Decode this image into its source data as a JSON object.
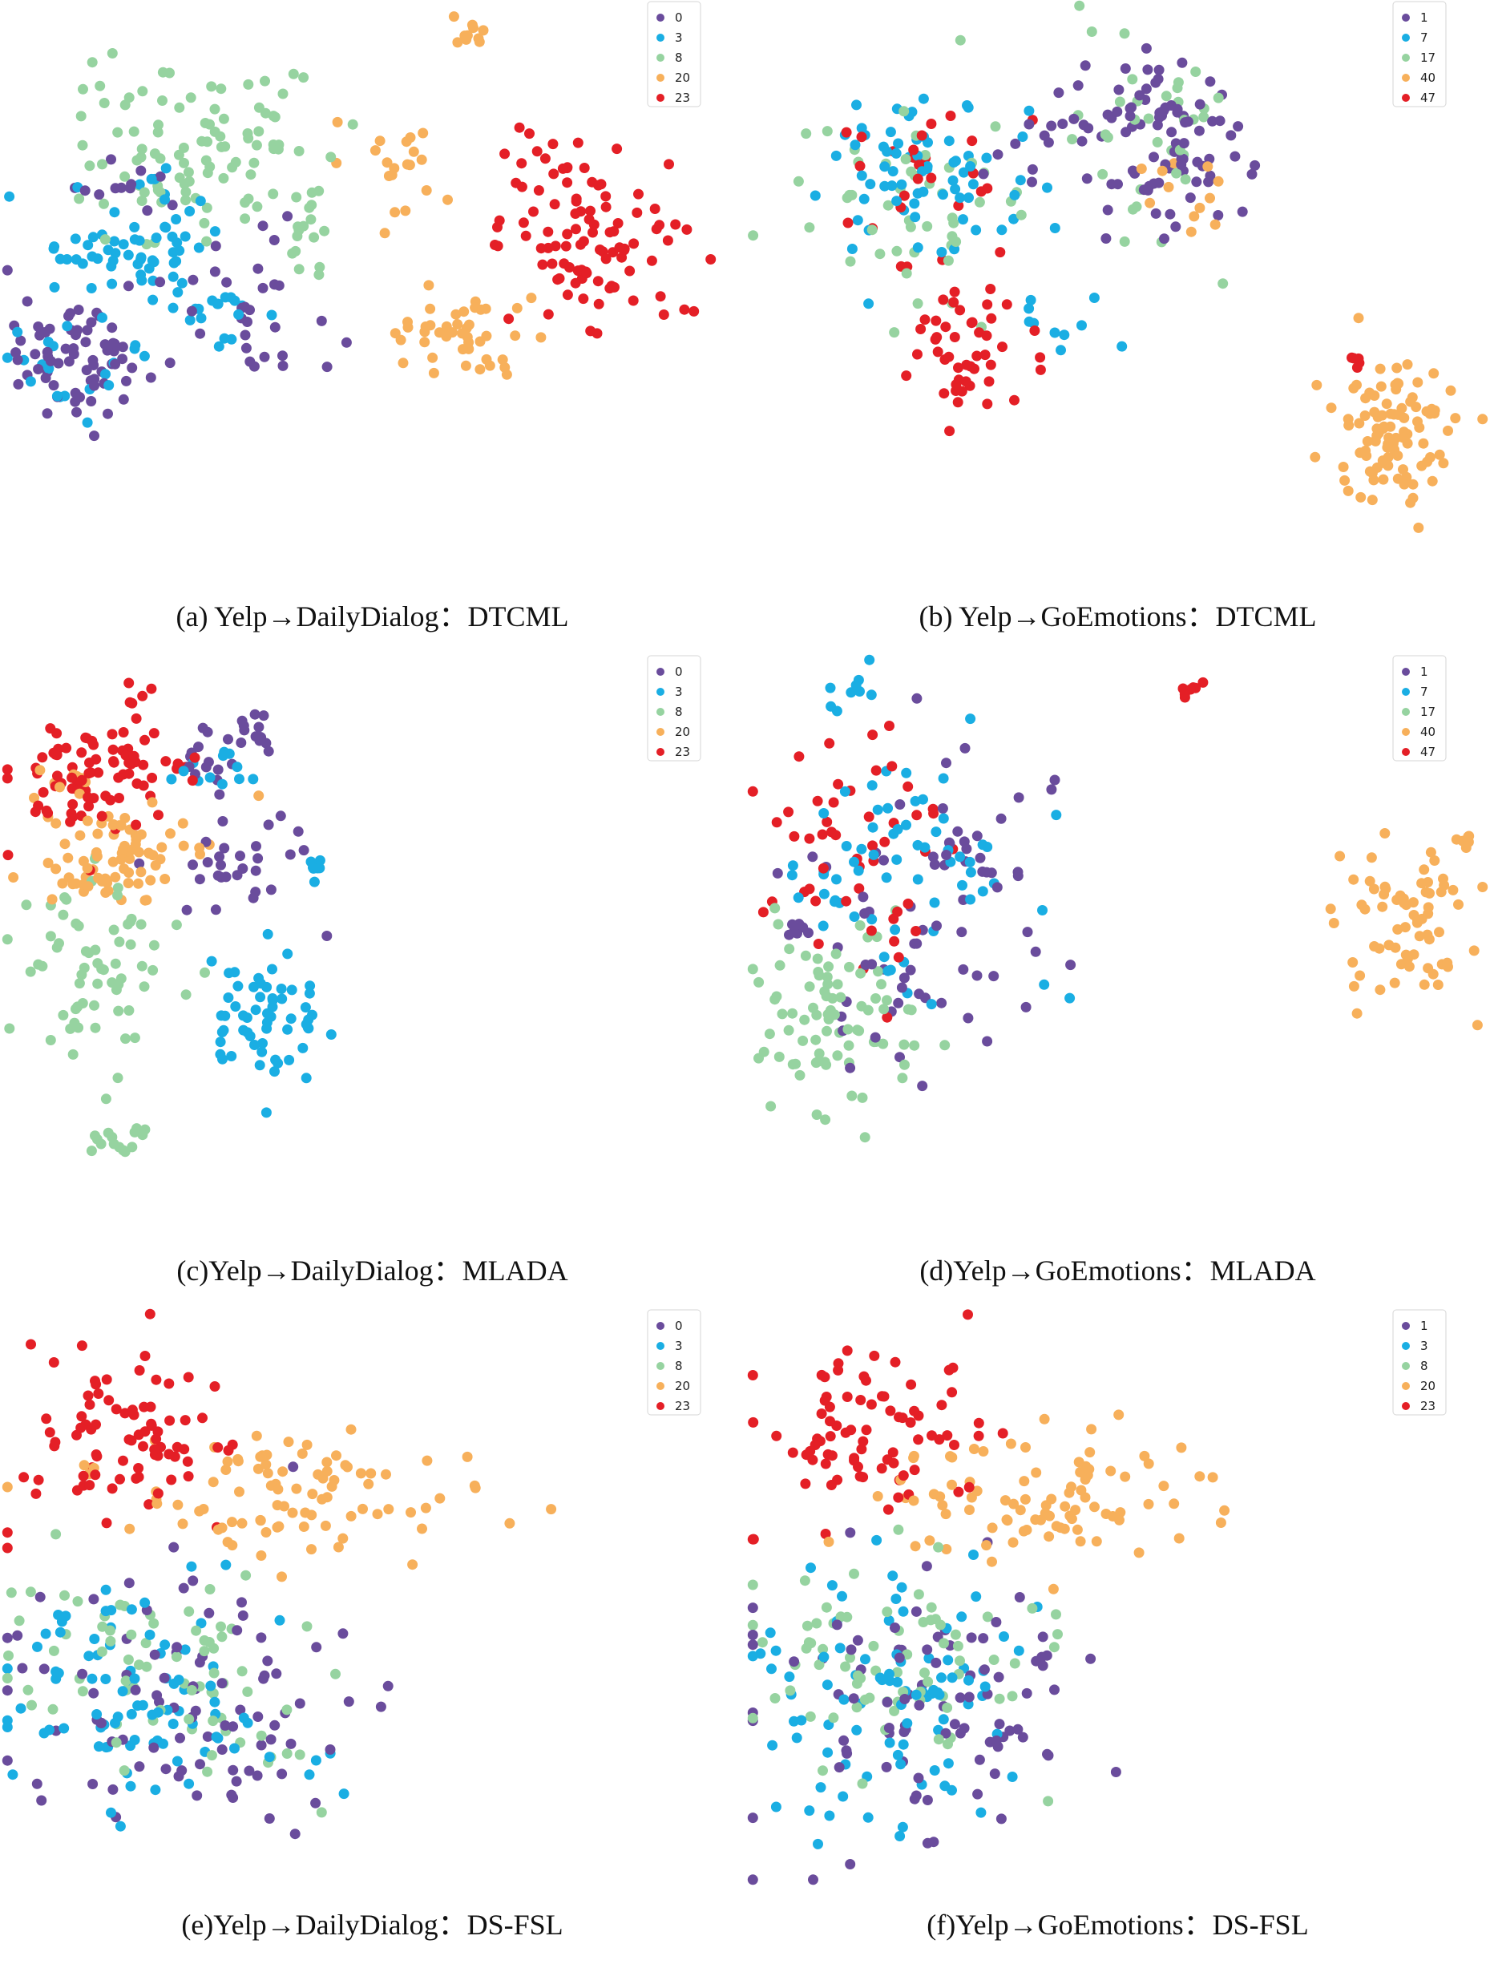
{
  "palette": [
    "#6a4c9c",
    "#1aaee3",
    "#96d3a0",
    "#f7b05b",
    "#e41f26"
  ],
  "panels": [
    {
      "caption": "(a) Yelp→DailyDialog：DTCML",
      "type": "scatter",
      "legend": [
        "0",
        "3",
        "8",
        "20",
        "23"
      ],
      "clusters": [
        {
          "cls": 0,
          "cx": 0.1,
          "cy": 0.62,
          "rx": 0.1,
          "ry": 0.1,
          "n": 70
        },
        {
          "cls": 0,
          "cx": 0.35,
          "cy": 0.55,
          "rx": 0.12,
          "ry": 0.12,
          "n": 30
        },
        {
          "cls": 0,
          "cx": 0.18,
          "cy": 0.32,
          "rx": 0.06,
          "ry": 0.04,
          "n": 12
        },
        {
          "cls": 1,
          "cx": 0.17,
          "cy": 0.43,
          "rx": 0.11,
          "ry": 0.08,
          "n": 60
        },
        {
          "cls": 1,
          "cx": 0.1,
          "cy": 0.62,
          "rx": 0.08,
          "ry": 0.08,
          "n": 20
        },
        {
          "cls": 1,
          "cx": 0.28,
          "cy": 0.53,
          "rx": 0.07,
          "ry": 0.05,
          "n": 20
        },
        {
          "cls": 2,
          "cx": 0.27,
          "cy": 0.25,
          "rx": 0.17,
          "ry": 0.14,
          "n": 100
        },
        {
          "cls": 2,
          "cx": 0.42,
          "cy": 0.42,
          "rx": 0.07,
          "ry": 0.08,
          "n": 15
        },
        {
          "cls": 3,
          "cx": 0.62,
          "cy": 0.58,
          "rx": 0.09,
          "ry": 0.06,
          "n": 45
        },
        {
          "cls": 3,
          "cx": 0.53,
          "cy": 0.3,
          "rx": 0.06,
          "ry": 0.12,
          "n": 20
        },
        {
          "cls": 3,
          "cx": 0.63,
          "cy": 0.06,
          "rx": 0.02,
          "ry": 0.025,
          "n": 10
        },
        {
          "cls": 4,
          "cx": 0.8,
          "cy": 0.43,
          "rx": 0.11,
          "ry": 0.12,
          "n": 85
        },
        {
          "cls": 4,
          "cx": 0.73,
          "cy": 0.28,
          "rx": 0.06,
          "ry": 0.08,
          "n": 15
        }
      ]
    },
    {
      "caption": "(b) Yelp→GoEmotions：DTCML",
      "type": "scatter",
      "legend": [
        "1",
        "7",
        "17",
        "40",
        "47"
      ],
      "clusters": [
        {
          "cls": 0,
          "cx": 0.57,
          "cy": 0.25,
          "rx": 0.09,
          "ry": 0.13,
          "n": 85
        },
        {
          "cls": 0,
          "cx": 0.4,
          "cy": 0.24,
          "rx": 0.1,
          "ry": 0.1,
          "n": 15
        },
        {
          "cls": 1,
          "cx": 0.24,
          "cy": 0.3,
          "rx": 0.13,
          "ry": 0.13,
          "n": 70
        },
        {
          "cls": 1,
          "cx": 0.42,
          "cy": 0.56,
          "rx": 0.08,
          "ry": 0.05,
          "n": 10
        },
        {
          "cls": 2,
          "cx": 0.22,
          "cy": 0.37,
          "rx": 0.15,
          "ry": 0.18,
          "n": 50
        },
        {
          "cls": 2,
          "cx": 0.53,
          "cy": 0.25,
          "rx": 0.1,
          "ry": 0.18,
          "n": 35
        },
        {
          "cls": 3,
          "cx": 0.87,
          "cy": 0.75,
          "rx": 0.07,
          "ry": 0.13,
          "n": 100
        },
        {
          "cls": 3,
          "cx": 0.6,
          "cy": 0.36,
          "rx": 0.05,
          "ry": 0.08,
          "n": 12
        },
        {
          "cls": 4,
          "cx": 0.3,
          "cy": 0.59,
          "rx": 0.08,
          "ry": 0.11,
          "n": 50
        },
        {
          "cls": 4,
          "cx": 0.25,
          "cy": 0.3,
          "rx": 0.12,
          "ry": 0.12,
          "n": 25
        },
        {
          "cls": 4,
          "cx": 0.82,
          "cy": 0.63,
          "rx": 0.01,
          "ry": 0.015,
          "n": 5
        }
      ]
    },
    {
      "caption": "(c)Yelp→DailyDialog：MLADA",
      "type": "scatter",
      "legend": [
        "0",
        "3",
        "8",
        "20",
        "23"
      ],
      "clusters": [
        {
          "cls": 0,
          "cx": 0.32,
          "cy": 0.36,
          "rx": 0.09,
          "ry": 0.1,
          "n": 30
        },
        {
          "cls": 0,
          "cx": 0.28,
          "cy": 0.18,
          "rx": 0.04,
          "ry": 0.05,
          "n": 15
        },
        {
          "cls": 0,
          "cx": 0.35,
          "cy": 0.14,
          "rx": 0.03,
          "ry": 0.05,
          "n": 12
        },
        {
          "cls": 1,
          "cx": 0.36,
          "cy": 0.63,
          "rx": 0.09,
          "ry": 0.1,
          "n": 60
        },
        {
          "cls": 1,
          "cx": 0.29,
          "cy": 0.2,
          "rx": 0.05,
          "ry": 0.05,
          "n": 12
        },
        {
          "cls": 1,
          "cx": 0.42,
          "cy": 0.37,
          "rx": 0.02,
          "ry": 0.02,
          "n": 8
        },
        {
          "cls": 2,
          "cx": 0.12,
          "cy": 0.55,
          "rx": 0.1,
          "ry": 0.15,
          "n": 65
        },
        {
          "cls": 2,
          "cx": 0.16,
          "cy": 0.84,
          "rx": 0.03,
          "ry": 0.025,
          "n": 15
        },
        {
          "cls": 3,
          "cx": 0.17,
          "cy": 0.35,
          "rx": 0.1,
          "ry": 0.08,
          "n": 80
        },
        {
          "cls": 3,
          "cx": 0.08,
          "cy": 0.22,
          "rx": 0.04,
          "ry": 0.04,
          "n": 8
        },
        {
          "cls": 4,
          "cx": 0.13,
          "cy": 0.2,
          "rx": 0.11,
          "ry": 0.1,
          "n": 85
        },
        {
          "cls": 4,
          "cx": 0.2,
          "cy": 0.08,
          "rx": 0.03,
          "ry": 0.03,
          "n": 6
        }
      ]
    },
    {
      "caption": "(d)Yelp→GoEmotions：MLADA",
      "type": "scatter",
      "legend": [
        "1",
        "7",
        "17",
        "40",
        "47"
      ],
      "clusters": [
        {
          "cls": 0,
          "cx": 0.25,
          "cy": 0.45,
          "rx": 0.14,
          "ry": 0.28,
          "n": 70
        },
        {
          "cls": 0,
          "cx": 0.07,
          "cy": 0.48,
          "rx": 0.015,
          "ry": 0.02,
          "n": 7
        },
        {
          "cls": 1,
          "cx": 0.21,
          "cy": 0.35,
          "rx": 0.14,
          "ry": 0.24,
          "n": 65
        },
        {
          "cls": 1,
          "cx": 0.14,
          "cy": 0.08,
          "rx": 0.03,
          "ry": 0.04,
          "n": 8
        },
        {
          "cls": 2,
          "cx": 0.12,
          "cy": 0.63,
          "rx": 0.1,
          "ry": 0.17,
          "n": 85
        },
        {
          "cls": 3,
          "cx": 0.89,
          "cy": 0.46,
          "rx": 0.08,
          "ry": 0.12,
          "n": 70
        },
        {
          "cls": 3,
          "cx": 0.97,
          "cy": 0.32,
          "rx": 0.01,
          "ry": 0.015,
          "n": 5
        },
        {
          "cls": 4,
          "cx": 0.13,
          "cy": 0.36,
          "rx": 0.12,
          "ry": 0.17,
          "n": 50
        },
        {
          "cls": 4,
          "cx": 0.91,
          "cy": 0.15,
          "rx": 0.007,
          "ry": 0.006,
          "n": 3
        },
        {
          "cls": 4,
          "cx": 0.6,
          "cy": 0.07,
          "rx": 0.03,
          "ry": 0.02,
          "n": 8
        }
      ]
    },
    {
      "caption": "(e)Yelp→DailyDialog：DS-FSL",
      "type": "scatter",
      "legend": [
        "0",
        "3",
        "8",
        "20",
        "23"
      ],
      "clusters": [
        {
          "cls": 0,
          "cx": 0.25,
          "cy": 0.68,
          "rx": 0.22,
          "ry": 0.22,
          "n": 90
        },
        {
          "cls": 1,
          "cx": 0.2,
          "cy": 0.68,
          "rx": 0.18,
          "ry": 0.2,
          "n": 90
        },
        {
          "cls": 2,
          "cx": 0.2,
          "cy": 0.62,
          "rx": 0.2,
          "ry": 0.16,
          "n": 75
        },
        {
          "cls": 3,
          "cx": 0.4,
          "cy": 0.33,
          "rx": 0.21,
          "ry": 0.1,
          "n": 90
        },
        {
          "cls": 4,
          "cx": 0.17,
          "cy": 0.22,
          "rx": 0.14,
          "ry": 0.14,
          "n": 80
        },
        {
          "cls": 4,
          "cx": 0.01,
          "cy": 0.4,
          "rx": 0.01,
          "ry": 0.015,
          "n": 2
        }
      ]
    },
    {
      "caption": "(f)Yelp→GoEmotions：DS-FSL",
      "type": "scatter",
      "legend": [
        "1",
        "3",
        "8",
        "20",
        "23"
      ],
      "clusters": [
        {
          "cls": 0,
          "cx": 0.25,
          "cy": 0.68,
          "rx": 0.22,
          "ry": 0.22,
          "n": 90
        },
        {
          "cls": 1,
          "cx": 0.2,
          "cy": 0.68,
          "rx": 0.18,
          "ry": 0.2,
          "n": 90
        },
        {
          "cls": 2,
          "cx": 0.2,
          "cy": 0.62,
          "rx": 0.2,
          "ry": 0.16,
          "n": 75
        },
        {
          "cls": 3,
          "cx": 0.4,
          "cy": 0.33,
          "rx": 0.21,
          "ry": 0.1,
          "n": 90
        },
        {
          "cls": 4,
          "cx": 0.17,
          "cy": 0.22,
          "rx": 0.14,
          "ry": 0.14,
          "n": 80
        },
        {
          "cls": 4,
          "cx": 0.01,
          "cy": 0.4,
          "rx": 0.01,
          "ry": 0.015,
          "n": 2
        }
      ]
    }
  ]
}
